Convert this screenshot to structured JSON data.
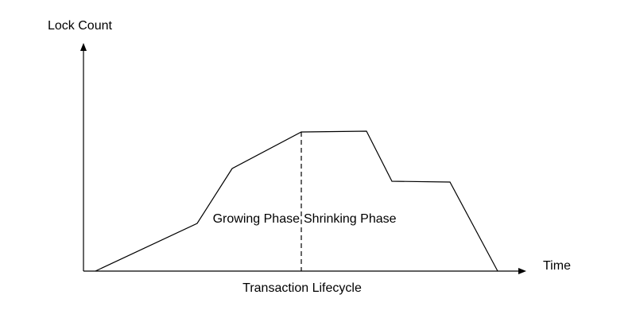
{
  "axes": {
    "y_label": "Lock Count",
    "x_label": "Time"
  },
  "phases": {
    "growing": "Growing Phase",
    "shrinking": "Shrinking Phase"
  },
  "caption": "Transaction Lifecycle"
}
